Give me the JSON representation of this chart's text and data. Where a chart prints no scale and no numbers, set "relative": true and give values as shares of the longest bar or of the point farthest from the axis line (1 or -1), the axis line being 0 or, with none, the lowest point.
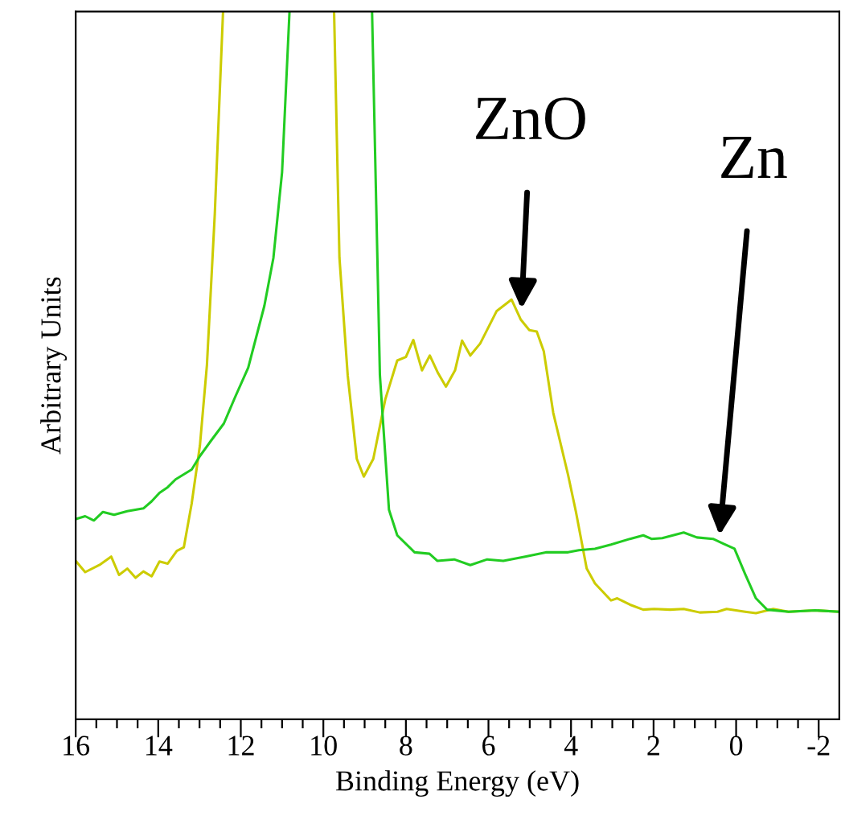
{
  "chart_data": {
    "type": "line",
    "relative": true,
    "xlabel": "Binding Energy (eV)",
    "ylabel": "Arbitrary Units",
    "xlim": [
      16,
      -2.5
    ],
    "xticks": [
      16,
      {
        "value": 15.5,
        "label": null
      },
      {
        "value": 15,
        "label": null
      },
      {
        "value": 14.5,
        "label": null
      },
      14,
      {
        "value": 13.5,
        "label": null
      },
      {
        "value": 13,
        "label": null
      },
      {
        "value": 12.5,
        "label": null
      },
      12,
      {
        "value": 11.5,
        "label": null
      },
      {
        "value": 11,
        "label": null
      },
      {
        "value": 10.5,
        "label": null
      },
      10,
      {
        "value": 9.5,
        "label": null
      },
      {
        "value": 9,
        "label": null
      },
      {
        "value": 8.5,
        "label": null
      },
      8,
      {
        "value": 7.5,
        "label": null
      },
      {
        "value": 7,
        "label": null
      },
      {
        "value": 6.5,
        "label": null
      },
      6,
      {
        "value": 5.5,
        "label": null
      },
      {
        "value": 5,
        "label": null
      },
      {
        "value": 4.5,
        "label": null
      },
      4,
      {
        "value": 3.5,
        "label": null
      },
      {
        "value": 3,
        "label": null
      },
      {
        "value": 2.5,
        "label": null
      },
      2,
      {
        "value": 1.5,
        "label": null
      },
      {
        "value": 1,
        "label": null
      },
      {
        "value": 0.5,
        "label": null
      },
      0,
      {
        "value": -0.5,
        "label": null
      },
      {
        "value": -1,
        "label": null
      },
      {
        "value": -1.5,
        "label": null
      },
      -2
    ],
    "grid": false,
    "legend": false,
    "marker": "none",
    "line_style": "solid",
    "series": [
      {
        "color": "#cccc00",
        "x": [
          16.0,
          15.77,
          15.4,
          15.14,
          14.95,
          14.75,
          14.55,
          14.36,
          14.16,
          13.97,
          13.77,
          13.55,
          13.38,
          13.19,
          12.99,
          12.82,
          12.63,
          12.43,
          11,
          9.74,
          9.61,
          9.41,
          9.19,
          9.02,
          8.79,
          8.5,
          8.21,
          8.0,
          7.82,
          7.61,
          7.42,
          7.22,
          7.03,
          6.81,
          6.64,
          6.44,
          6.2,
          5.8,
          5.44,
          5.22,
          5.01,
          4.83,
          4.66,
          4.43,
          4.07,
          3.88,
          3.62,
          3.42,
          3.03,
          2.88,
          2.57,
          2.25,
          1.99,
          1.6,
          1.27,
          0.88,
          0.45,
          0.23,
          -0.22,
          -0.48,
          -0.9,
          -1.27,
          -1.92,
          -2.5
        ],
        "values": [
          0.224,
          0.208,
          0.219,
          0.23,
          0.204,
          0.213,
          0.2,
          0.209,
          0.202,
          0.223,
          0.22,
          0.238,
          0.243,
          0.305,
          0.387,
          0.501,
          0.714,
          1.0,
          null,
          1.0,
          0.652,
          0.486,
          0.368,
          0.343,
          0.368,
          0.452,
          0.507,
          0.512,
          0.536,
          0.493,
          0.514,
          0.489,
          0.47,
          0.493,
          0.535,
          0.514,
          0.531,
          0.577,
          0.593,
          0.565,
          0.55,
          0.548,
          0.52,
          0.433,
          0.345,
          0.293,
          0.213,
          0.192,
          0.168,
          0.171,
          0.162,
          0.155,
          0.156,
          0.155,
          0.156,
          0.151,
          0.152,
          0.156,
          0.152,
          0.15,
          0.156,
          0.152,
          0.154,
          0.152
        ]
      },
      {
        "color": "#22cc22",
        "x": [
          16.0,
          15.77,
          15.56,
          15.34,
          15.07,
          14.75,
          14.36,
          14.16,
          13.97,
          13.77,
          13.58,
          13.19,
          12.99,
          12.73,
          12.41,
          12.14,
          11.82,
          11.43,
          11.21,
          11.0,
          10.82,
          10,
          8.82,
          8.63,
          8.41,
          8.21,
          7.79,
          7.43,
          7.24,
          6.83,
          6.44,
          6.03,
          5.64,
          5.11,
          4.59,
          4.07,
          3.81,
          3.42,
          3.03,
          2.57,
          2.25,
          2.05,
          1.79,
          1.27,
          0.95,
          0.56,
          0.3,
          0.04,
          -0.22,
          -0.48,
          -0.75,
          -1.27,
          -1.92,
          -2.5
        ],
        "values": [
          0.283,
          0.287,
          0.281,
          0.293,
          0.289,
          0.294,
          0.298,
          0.308,
          0.32,
          0.328,
          0.339,
          0.353,
          0.372,
          0.393,
          0.418,
          0.455,
          0.497,
          0.584,
          0.652,
          0.773,
          1.0,
          null,
          1.0,
          0.486,
          0.296,
          0.26,
          0.236,
          0.234,
          0.224,
          0.226,
          0.218,
          0.226,
          0.224,
          0.23,
          0.236,
          0.236,
          0.239,
          0.241,
          0.247,
          0.255,
          0.26,
          0.255,
          0.256,
          0.264,
          0.257,
          0.255,
          0.248,
          0.241,
          0.205,
          0.171,
          0.155,
          0.152,
          0.154,
          0.152
        ]
      }
    ],
    "annotations": [
      {
        "text": "ZnO",
        "x": 5.2,
        "y": 0.58
      },
      {
        "text": "Zn",
        "x": 0.4,
        "y": 0.26
      }
    ]
  }
}
